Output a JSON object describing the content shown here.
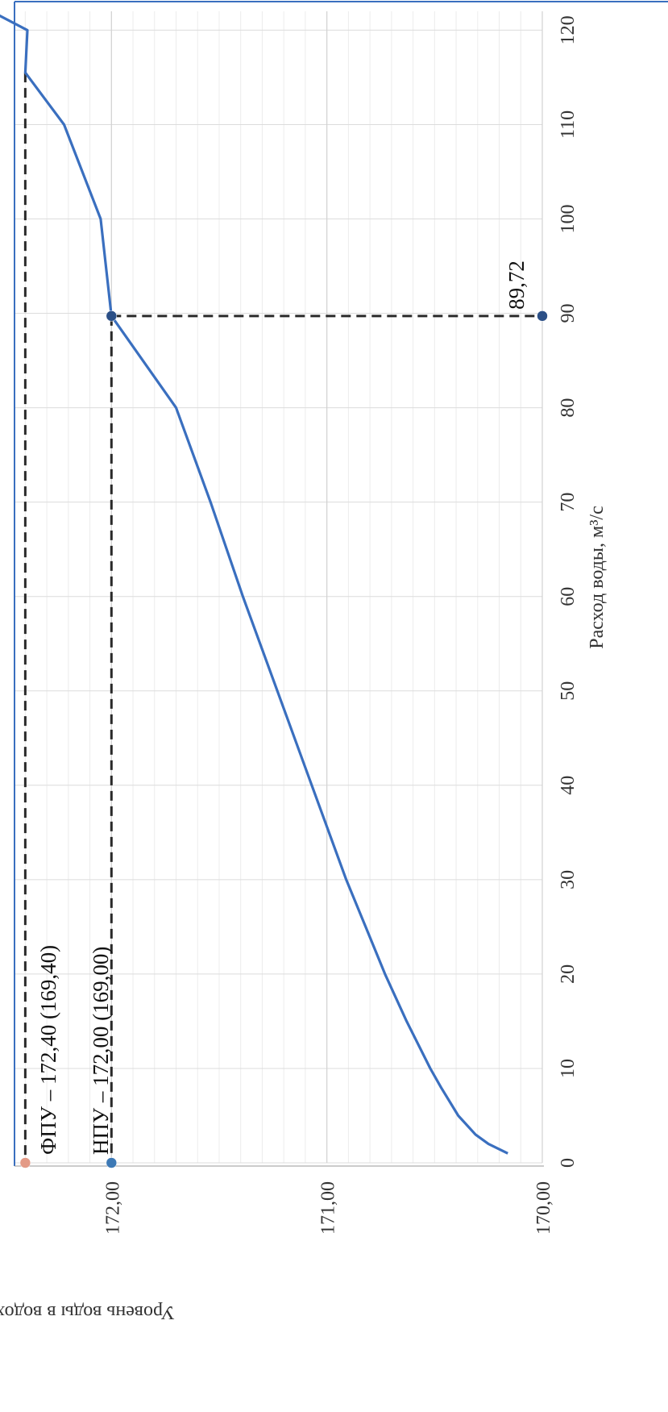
{
  "chart_data": {
    "type": "line",
    "xlabel": "Расход воды, м³/с",
    "ylabel": "Уровень воды в водохранилище , м БС",
    "xlim": [
      0,
      122
    ],
    "ylim": [
      170.0,
      172.45
    ],
    "x_ticks": [
      "0",
      "10",
      "20",
      "30",
      "40",
      "50",
      "60",
      "70",
      "80",
      "90",
      "100",
      "110",
      "120"
    ],
    "y_ticks": [
      "170,00",
      "171,00",
      "172,00"
    ],
    "grid": true,
    "series": [
      {
        "x": [
          1,
          2,
          3,
          5,
          8,
          10,
          15,
          20,
          25,
          30,
          40,
          50,
          60,
          70,
          80,
          89.72,
          100,
          110,
          115.5,
          120,
          122.5
        ],
        "y": [
          170.16,
          170.25,
          170.31,
          170.39,
          170.47,
          170.52,
          170.63,
          170.73,
          170.82,
          170.91,
          171.07,
          171.23,
          171.39,
          171.54,
          171.7,
          172.0,
          172.05,
          172.22,
          172.4,
          172.39,
          172.6
        ]
      }
    ],
    "points": [
      {
        "x": 89.72,
        "y": 172.0,
        "color": "#2b4f86"
      },
      {
        "x": 89.72,
        "y": 170.0,
        "color": "#2b4f86"
      },
      {
        "x": 0,
        "y": 172.0,
        "color": "#3d79b5"
      },
      {
        "x": 0,
        "y": 172.4,
        "color": "#e39a86"
      }
    ],
    "annotations": [
      {
        "text": "89,72",
        "x": 89.72,
        "y": 170.0
      },
      {
        "text": "НПУ – 172,00 (169,00)",
        "x": 0,
        "y": 172.0
      },
      {
        "text": "ФПУ – 172,40 (169,40)",
        "x": 0,
        "y": 172.4
      }
    ],
    "colors": {
      "line": "#3a6fbf",
      "dash": "#2a2a2a",
      "grid": "#dcdcdc",
      "frame": "#3a6fbf"
    }
  }
}
